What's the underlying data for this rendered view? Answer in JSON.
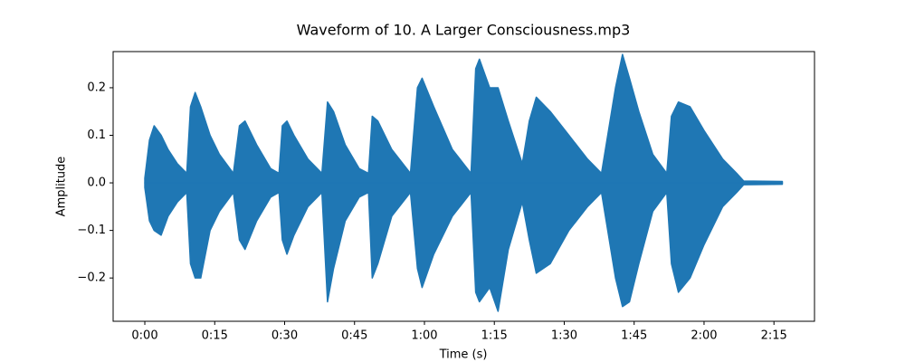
{
  "chart_data": {
    "type": "waveform",
    "title": "Waveform of 10. A Larger Consciousness.mp3",
    "xlabel": "Time (s)",
    "ylabel": "Amplitude",
    "x": [
      0,
      1,
      2,
      3.5,
      5,
      7,
      9,
      9.8,
      10.8,
      12,
      14,
      16,
      19,
      20.3,
      21.5,
      24,
      27,
      28.8,
      29.5,
      30.5,
      32,
      35,
      38,
      39.2,
      40.5,
      43,
      46,
      48,
      48.8,
      50,
      53,
      57,
      58.5,
      59.5,
      62,
      66,
      70,
      71,
      71.8,
      74,
      75.8,
      78,
      81,
      82.5,
      84,
      87,
      91,
      95,
      98,
      101,
      102.5,
      104,
      106,
      109,
      112,
      113,
      114.5,
      117,
      120,
      124,
      127,
      128.5,
      136.8
    ],
    "series": [
      {
        "color": "#1f77b4",
        "values": [
          0.01,
          0.09,
          0.12,
          0.1,
          0.07,
          0.04,
          0.02,
          0.16,
          0.19,
          0.16,
          0.1,
          0.06,
          0.02,
          0.12,
          0.13,
          0.08,
          0.03,
          0.02,
          0.12,
          0.13,
          0.1,
          0.05,
          0.02,
          0.17,
          0.15,
          0.08,
          0.03,
          0.02,
          0.14,
          0.13,
          0.07,
          0.02,
          0.2,
          0.22,
          0.16,
          0.07,
          0.02,
          0.24,
          0.26,
          0.2,
          0.2,
          0.13,
          0.04,
          0.13,
          0.18,
          0.15,
          0.1,
          0.05,
          0.02,
          0.2,
          0.27,
          0.22,
          0.15,
          0.06,
          0.02,
          0.14,
          0.17,
          0.16,
          0.11,
          0.05,
          0.02,
          0.004,
          0.003
        ]
      },
      {
        "color": "#1f77b4",
        "values": [
          -0.01,
          -0.08,
          -0.1,
          -0.11,
          -0.07,
          -0.04,
          -0.02,
          -0.17,
          -0.2,
          -0.2,
          -0.1,
          -0.06,
          -0.02,
          -0.12,
          -0.14,
          -0.08,
          -0.03,
          -0.02,
          -0.12,
          -0.15,
          -0.11,
          -0.05,
          -0.02,
          -0.25,
          -0.18,
          -0.08,
          -0.03,
          -0.02,
          -0.2,
          -0.17,
          -0.07,
          -0.02,
          -0.18,
          -0.22,
          -0.15,
          -0.07,
          -0.02,
          -0.23,
          -0.25,
          -0.22,
          -0.27,
          -0.14,
          -0.04,
          -0.12,
          -0.19,
          -0.17,
          -0.1,
          -0.05,
          -0.02,
          -0.2,
          -0.26,
          -0.25,
          -0.17,
          -0.06,
          -0.02,
          -0.17,
          -0.23,
          -0.2,
          -0.13,
          -0.05,
          -0.02,
          -0.004,
          -0.003
        ]
      }
    ],
    "xlim": [
      -6.8,
      143.7
    ],
    "ylim": [
      -0.291,
      0.276
    ],
    "xticks": [
      {
        "value": 0,
        "label": "0:00"
      },
      {
        "value": 15,
        "label": "0:15"
      },
      {
        "value": 30,
        "label": "0:30"
      },
      {
        "value": 45,
        "label": "0:45"
      },
      {
        "value": 60,
        "label": "1:00"
      },
      {
        "value": 75,
        "label": "1:15"
      },
      {
        "value": 90,
        "label": "1:30"
      },
      {
        "value": 105,
        "label": "1:45"
      },
      {
        "value": 120,
        "label": "2:00"
      },
      {
        "value": 135,
        "label": "2:15"
      }
    ],
    "yticks": [
      {
        "value": -0.2,
        "label": "−0.2"
      },
      {
        "value": -0.1,
        "label": "−0.1"
      },
      {
        "value": 0,
        "label": "0.0"
      },
      {
        "value": 0.1,
        "label": "0.1"
      },
      {
        "value": 0.2,
        "label": "0.2"
      }
    ]
  }
}
